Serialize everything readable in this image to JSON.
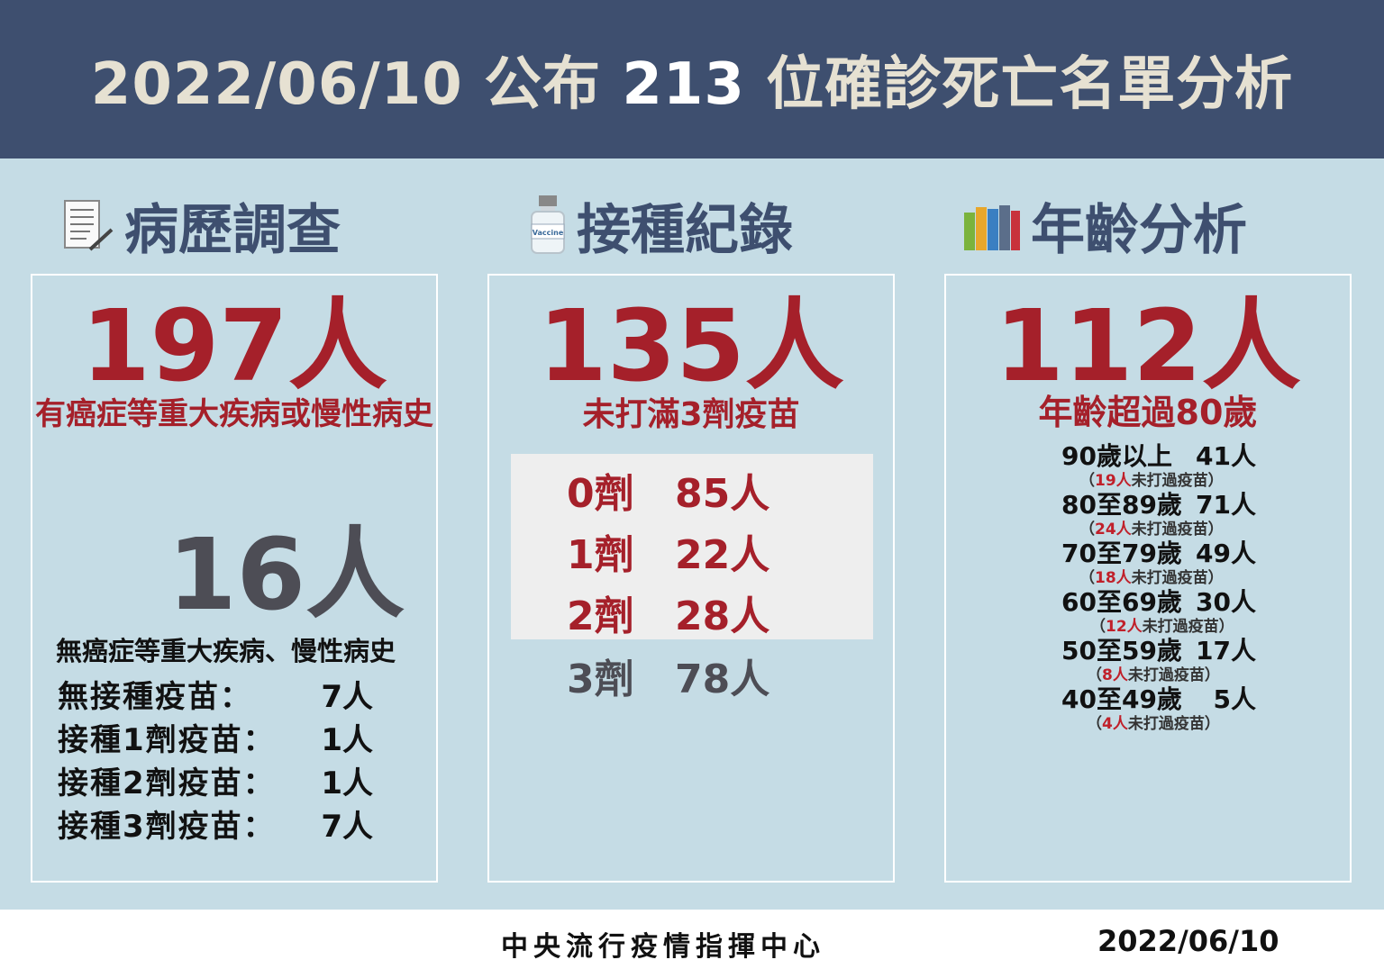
{
  "header": {
    "title_pre": "2022/06/10 公布 ",
    "title_num": "213",
    "title_post": " 位確診死亡名單分析"
  },
  "sections": {
    "history": {
      "heading": "病歷調查",
      "icon": "document-pen-icon",
      "big": "197人",
      "big_sub": "有癌症等重大疾病或慢性病史",
      "gray": "16人",
      "no_history": "無癌症等重大疾病、慢性病史",
      "rows": [
        {
          "label": "無接種疫苗：",
          "value": "7人"
        },
        {
          "label": "接種1劑疫苗：",
          "value": "1人"
        },
        {
          "label": "接種2劑疫苗：",
          "value": "1人"
        },
        {
          "label": "接種3劑疫苗：",
          "value": "7人"
        }
      ]
    },
    "vaccination": {
      "heading": "接種紀錄",
      "icon": "vaccine-bottle-icon",
      "big": "135人",
      "big_sub": "未打滿3劑疫苗",
      "doses": [
        {
          "dose": "0劑",
          "count": "85人"
        },
        {
          "dose": "1劑",
          "count": "22人"
        },
        {
          "dose": "2劑",
          "count": "28人"
        },
        {
          "dose": "3劑",
          "count": "78人"
        }
      ]
    },
    "age": {
      "heading": "年齡分析",
      "icon": "books-icon",
      "big": "112人",
      "big_sub": "年齡超過80歲",
      "groups": [
        {
          "range": "90歲以上",
          "count": "41人",
          "unvax": "19人",
          "note": "未打過疫苗"
        },
        {
          "range": "80至89歲",
          "count": "71人",
          "unvax": "24人",
          "note": "未打過疫苗"
        },
        {
          "range": "70至79歲",
          "count": "49人",
          "unvax": "18人",
          "note": "未打過疫苗"
        },
        {
          "range": "60至69歲",
          "count": "30人",
          "unvax": "12人",
          "note": "未打過疫苗"
        },
        {
          "range": "50至59歲",
          "count": "17人",
          "unvax": "8人",
          "note": "未打過疫苗"
        },
        {
          "range": "40至49歲",
          "count": "5人",
          "unvax": "4人",
          "note": "未打過疫苗"
        }
      ]
    }
  },
  "footer": {
    "org": "中央流行疫情指揮中心",
    "date": "2022/06/10"
  },
  "colors": {
    "header_bg": "#3e4f6f",
    "page_bg": "#c5dce5",
    "accent_red": "#a5202a",
    "gray_text": "#4d4d55"
  }
}
